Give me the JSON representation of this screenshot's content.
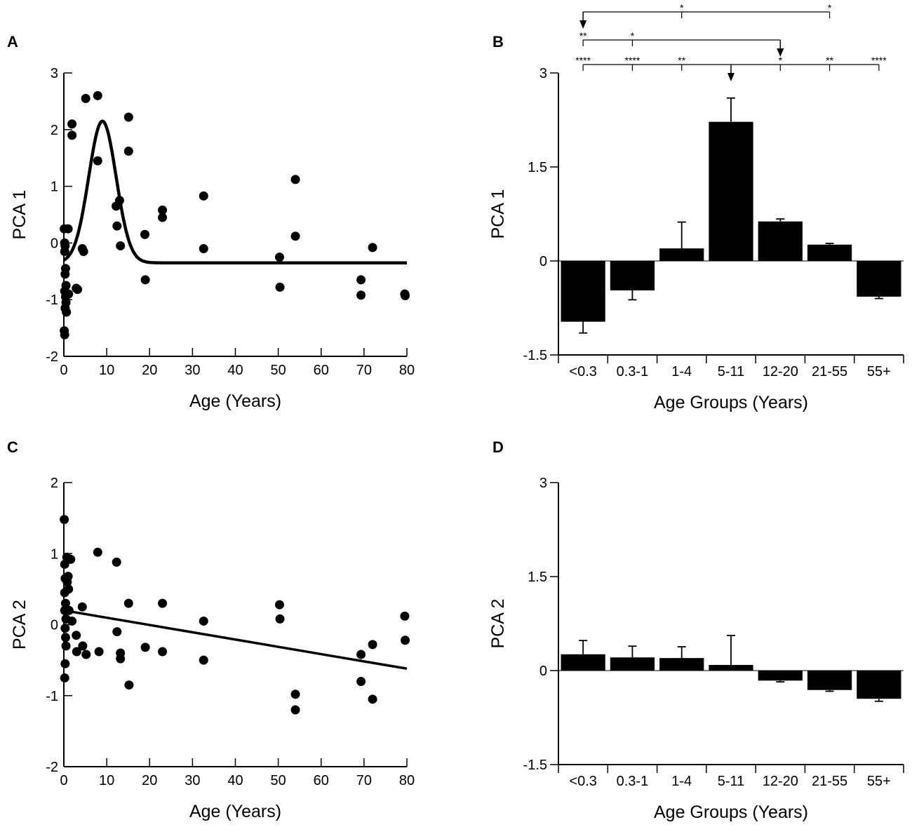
{
  "chart_data": [
    {
      "panel": "A",
      "type": "scatter",
      "xlabel": "Age (Years)",
      "ylabel": "PCA 1",
      "xlim": [
        0,
        80
      ],
      "ylim": [
        -2,
        3
      ],
      "xticks": [
        0,
        10,
        20,
        30,
        40,
        50,
        60,
        70,
        80
      ],
      "yticks": [
        -2,
        -1,
        0,
        1,
        2,
        3
      ],
      "points": [
        [
          0.1,
          0.25
        ],
        [
          0.2,
          0.0
        ],
        [
          0.3,
          -0.05
        ],
        [
          0.2,
          -0.15
        ],
        [
          0.4,
          -0.45
        ],
        [
          0.3,
          -0.55
        ],
        [
          0.5,
          -0.75
        ],
        [
          0.2,
          -0.85
        ],
        [
          0.4,
          -0.95
        ],
        [
          0.5,
          -1.05
        ],
        [
          0.3,
          -1.15
        ],
        [
          0.6,
          -1.22
        ],
        [
          0.1,
          -1.55
        ],
        [
          0.2,
          -1.62
        ],
        [
          1.0,
          0.25
        ],
        [
          1.1,
          -0.9
        ],
        [
          1.9,
          2.1
        ],
        [
          1.9,
          1.9
        ],
        [
          2.9,
          -0.8
        ],
        [
          3.2,
          -0.82
        ],
        [
          4.3,
          -0.1
        ],
        [
          4.6,
          -0.15
        ],
        [
          5.1,
          2.55
        ],
        [
          7.9,
          2.6
        ],
        [
          7.9,
          1.45
        ],
        [
          12.2,
          0.65
        ],
        [
          12.4,
          0.3
        ],
        [
          13.0,
          0.75
        ],
        [
          13.2,
          -0.05
        ],
        [
          15.1,
          2.22
        ],
        [
          15.1,
          1.62
        ],
        [
          18.9,
          0.15
        ],
        [
          19.0,
          -0.65
        ],
        [
          23.0,
          0.58
        ],
        [
          23.0,
          0.45
        ],
        [
          32.6,
          0.83
        ],
        [
          32.6,
          -0.1
        ],
        [
          50.3,
          -0.25
        ],
        [
          50.4,
          -0.78
        ],
        [
          54.0,
          1.12
        ],
        [
          54.0,
          0.12
        ],
        [
          69.3,
          -0.65
        ],
        [
          69.3,
          -0.92
        ],
        [
          72.0,
          -0.08
        ],
        [
          79.5,
          -0.9
        ],
        [
          79.6,
          -0.93
        ]
      ],
      "fit": {
        "type": "gaussian",
        "baseline": -0.35,
        "peak_x": 9,
        "peak_y": 2.15,
        "width": 3.2,
        "x_range": [
          0,
          80
        ]
      }
    },
    {
      "panel": "B",
      "type": "bar",
      "xlabel": "Age Groups (Years)",
      "ylabel": "PCA 1",
      "ylim": [
        -1.5,
        3
      ],
      "yticks": [
        -1.5,
        0,
        1.5,
        3
      ],
      "ytick_labels": [
        "-1.5",
        "0",
        "1.5",
        "3"
      ],
      "categories": [
        "<0.3",
        "0.3-1",
        "1-4",
        "5-11",
        "12-20",
        "21-55",
        "55+"
      ],
      "values": [
        -0.97,
        -0.47,
        0.2,
        2.22,
        0.63,
        0.26,
        -0.57
      ],
      "errors": [
        0.18,
        0.15,
        0.42,
        0.38,
        0.04,
        0.02,
        0.03
      ],
      "significance": [
        {
          "reference": "5-11",
          "labels": [
            {
              "category": "<0.3",
              "text": "****"
            },
            {
              "category": "0.3-1",
              "text": "****"
            },
            {
              "category": "1-4",
              "text": "**"
            },
            {
              "category": "12-20",
              "text": "*"
            },
            {
              "category": "21-55",
              "text": "**"
            },
            {
              "category": "55+",
              "text": "****"
            }
          ]
        },
        {
          "reference": "12-20",
          "labels": [
            {
              "category": "<0.3",
              "text": "**"
            },
            {
              "category": "0.3-1",
              "text": "*"
            }
          ]
        },
        {
          "reference": "<0.3",
          "labels": [
            {
              "category": "1-4",
              "text": "*"
            },
            {
              "category": "21-55",
              "text": "*"
            }
          ]
        }
      ]
    },
    {
      "panel": "C",
      "type": "scatter",
      "xlabel": "Age (Years)",
      "ylabel": "PCA 2",
      "xlim": [
        0,
        80
      ],
      "ylim": [
        -2,
        2
      ],
      "xticks": [
        0,
        10,
        20,
        30,
        40,
        50,
        60,
        70,
        80
      ],
      "yticks": [
        -2,
        -1,
        0,
        1,
        2
      ],
      "points": [
        [
          0.1,
          1.48
        ],
        [
          0.2,
          0.85
        ],
        [
          0.3,
          0.65
        ],
        [
          0.2,
          0.45
        ],
        [
          0.4,
          0.3
        ],
        [
          0.2,
          0.2
        ],
        [
          0.5,
          0.08
        ],
        [
          0.3,
          -0.05
        ],
        [
          0.4,
          -0.18
        ],
        [
          0.5,
          -0.3
        ],
        [
          0.3,
          -0.55
        ],
        [
          0.2,
          -0.75
        ],
        [
          0.7,
          0.95
        ],
        [
          0.8,
          0.6
        ],
        [
          1.0,
          0.68
        ],
        [
          1.1,
          0.5
        ],
        [
          1.2,
          0.2
        ],
        [
          1.6,
          0.92
        ],
        [
          1.9,
          0.05
        ],
        [
          2.9,
          -0.15
        ],
        [
          3.0,
          -0.38
        ],
        [
          4.3,
          0.25
        ],
        [
          4.4,
          -0.3
        ],
        [
          5.2,
          -0.42
        ],
        [
          7.9,
          1.02
        ],
        [
          8.2,
          -0.38
        ],
        [
          12.3,
          0.88
        ],
        [
          12.4,
          -0.1
        ],
        [
          13.2,
          -0.4
        ],
        [
          13.2,
          -0.48
        ],
        [
          15.1,
          0.3
        ],
        [
          15.2,
          -0.85
        ],
        [
          19.0,
          -0.32
        ],
        [
          23.0,
          0.3
        ],
        [
          23.0,
          -0.38
        ],
        [
          32.6,
          0.05
        ],
        [
          32.6,
          -0.5
        ],
        [
          50.3,
          0.28
        ],
        [
          50.4,
          0.08
        ],
        [
          54.0,
          -0.98
        ],
        [
          54.0,
          -1.2
        ],
        [
          69.3,
          -0.42
        ],
        [
          69.3,
          -0.8
        ],
        [
          72.0,
          -0.28
        ],
        [
          72.0,
          -1.05
        ],
        [
          79.5,
          0.12
        ],
        [
          79.6,
          -0.22
        ]
      ],
      "fit": {
        "type": "linear",
        "x": [
          0,
          80
        ],
        "y": [
          0.2,
          -0.62
        ]
      }
    },
    {
      "panel": "D",
      "type": "bar",
      "xlabel": "Age Groups (Years)",
      "ylabel": "PCA 2",
      "ylim": [
        -1.5,
        3
      ],
      "yticks": [
        -1.5,
        0,
        1.5,
        3
      ],
      "ytick_labels": [
        "-1.5",
        "0",
        "1.5",
        "3"
      ],
      "categories": [
        "<0.3",
        "0.3-1",
        "1-4",
        "5-11",
        "12-20",
        "21-55",
        "55+"
      ],
      "values": [
        0.26,
        0.21,
        0.2,
        0.09,
        -0.16,
        -0.31,
        -0.45
      ],
      "errors": [
        0.22,
        0.18,
        0.18,
        0.47,
        0.02,
        0.02,
        0.04
      ]
    }
  ]
}
